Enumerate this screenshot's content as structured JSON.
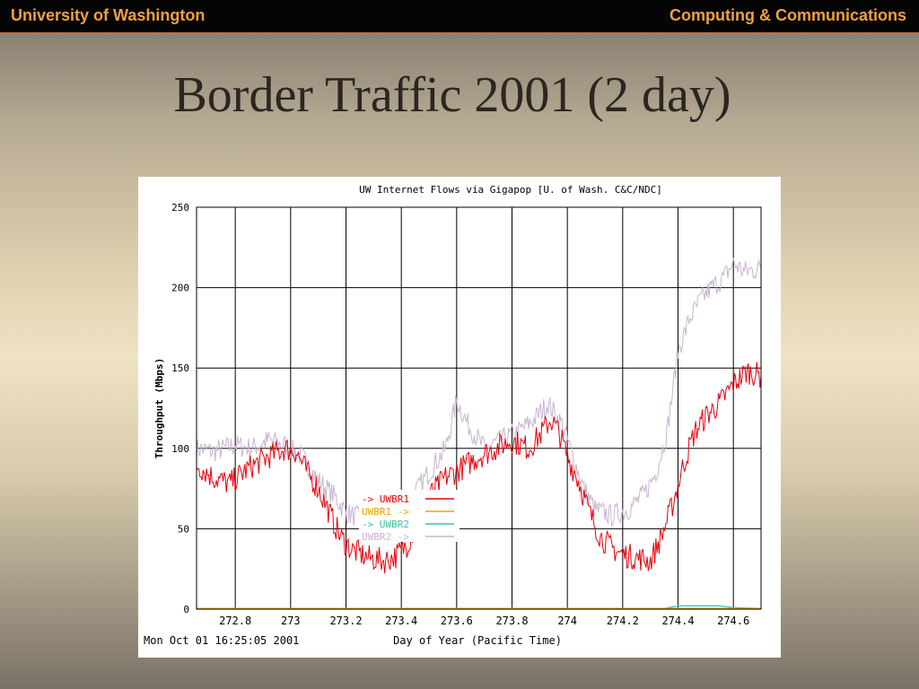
{
  "header": {
    "left_text": "University of Washington",
    "right_text": "Computing & Communications"
  },
  "slide": {
    "title": "Border Traffic 2001 (2 day)"
  },
  "footer_stamp": "Mon Oct 01 16:25:05 2001",
  "colors": {
    "wbr1_in": "#e8000b",
    "wbr1_out": "#f0a000",
    "wbr2_in": "#40c0a0",
    "wbr2_out": "#c8b4d0"
  },
  "chart_data": {
    "type": "line",
    "title": "UW Internet Flows via Gigapop [U. of Wash. C&C/NDC]",
    "xlabel": "Day of Year (Pacific Time)",
    "ylabel": "Throughput (Mbps)",
    "xlim": [
      272.66,
      274.7
    ],
    "ylim": [
      0,
      250
    ],
    "xticks": [
      272.8,
      273,
      273.2,
      273.4,
      273.6,
      273.8,
      274,
      274.2,
      274.4,
      274.6
    ],
    "xtick_labels": [
      "272.8",
      "273",
      "273.2",
      "273.4",
      "273.6",
      "273.8",
      "274",
      "274.2",
      "274.4",
      "274.6"
    ],
    "yticks": [
      0,
      50,
      100,
      150,
      200,
      250
    ],
    "ytick_labels": [
      "0",
      "50",
      "100",
      "150",
      "200",
      "250"
    ],
    "grid": true,
    "legend_position": "center",
    "series": [
      {
        "name": "-> UWBR1",
        "color": "#e8000b",
        "x": [
          272.66,
          272.72,
          272.78,
          272.85,
          272.92,
          272.98,
          273.02,
          273.06,
          273.1,
          273.14,
          273.18,
          273.22,
          273.28,
          273.34,
          273.38,
          273.42,
          273.46,
          273.5,
          273.56,
          273.62,
          273.68,
          273.74,
          273.8,
          273.86,
          273.9,
          273.94,
          273.97,
          274.0,
          274.04,
          274.08,
          274.12,
          274.16,
          274.2,
          274.25,
          274.3,
          274.34,
          274.38,
          274.42,
          274.46,
          274.5,
          274.55,
          274.6,
          274.65,
          274.7
        ],
        "y": [
          90,
          82,
          78,
          88,
          95,
          100,
          98,
          85,
          75,
          60,
          45,
          37,
          32,
          30,
          33,
          40,
          55,
          70,
          82,
          88,
          95,
          100,
          105,
          100,
          108,
          118,
          110,
          95,
          80,
          60,
          45,
          38,
          34,
          32,
          30,
          45,
          65,
          90,
          110,
          120,
          128,
          140,
          148,
          145
        ]
      },
      {
        "name": "UWBR1 ->",
        "color": "#f0a000",
        "x": [
          272.66,
          274.7
        ],
        "y": [
          0.5,
          0.5
        ]
      },
      {
        "name": "-> UWBR2",
        "color": "#40c0a0",
        "x": [
          272.66,
          274.35,
          274.4,
          274.55,
          274.6,
          274.7
        ],
        "y": [
          0.5,
          0.5,
          2,
          2,
          1,
          0.5
        ]
      },
      {
        "name": "UWBR2 ->",
        "color": "#c8b4d0",
        "x": [
          272.66,
          272.72,
          272.8,
          272.86,
          272.92,
          272.98,
          273.04,
          273.1,
          273.16,
          273.2,
          273.26,
          273.32,
          273.38,
          273.44,
          273.5,
          273.56,
          273.6,
          273.64,
          273.7,
          273.76,
          273.82,
          273.88,
          273.93,
          273.98,
          274.02,
          274.06,
          274.1,
          274.16,
          274.22,
          274.28,
          274.32,
          274.36,
          274.4,
          274.44,
          274.48,
          274.52,
          274.56,
          274.6,
          274.64,
          274.7
        ],
        "y": [
          100,
          98,
          102,
          100,
          105,
          102,
          95,
          80,
          70,
          60,
          56,
          58,
          62,
          70,
          85,
          100,
          130,
          115,
          100,
          105,
          110,
          118,
          128,
          115,
          95,
          75,
          62,
          58,
          62,
          72,
          85,
          110,
          160,
          180,
          192,
          200,
          205,
          215,
          210,
          212
        ]
      }
    ]
  }
}
